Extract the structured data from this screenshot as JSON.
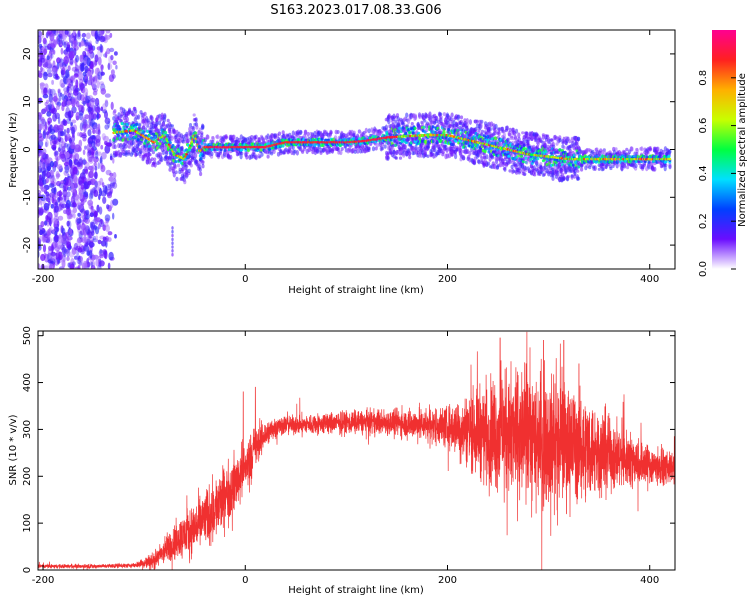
{
  "figure": {
    "title": "S163.2023.017.08.33.G06"
  },
  "chart_data": [
    {
      "type": "heatmap",
      "name": "spectrogram",
      "xlabel": "Height of straight line (km)",
      "ylabel": "Frequency (Hz)",
      "xlim": [
        -205,
        425
      ],
      "ylim": [
        -25,
        25
      ],
      "xticks": [
        -200,
        0,
        200,
        400
      ],
      "yticks": [
        -20,
        -10,
        0,
        10,
        20
      ],
      "colorbar": {
        "label": "Normalized spectral amplitude",
        "range": [
          0,
          1
        ],
        "ticks": [
          0.0,
          0.2,
          0.4,
          0.6,
          0.8
        ],
        "colors": [
          "#ffffff",
          "#6a0dff",
          "#0040ff",
          "#00e0ff",
          "#00ff40",
          "#c8ff00",
          "#ffb000",
          "#ff2020",
          "#ff0090"
        ]
      },
      "ridge": {
        "x": [
          -130,
          -110,
          -90,
          -80,
          -70,
          -60,
          -50,
          -45,
          -40,
          -20,
          0,
          20,
          40,
          60,
          80,
          100,
          120,
          140,
          160,
          180,
          200,
          220,
          240,
          260,
          280,
          300,
          320,
          340,
          360,
          380,
          400,
          420
        ],
        "y": [
          3.5,
          4,
          1.5,
          3,
          -1,
          -2,
          3,
          -0.5,
          0.5,
          0.5,
          0.5,
          0.5,
          1.5,
          1.5,
          1.5,
          1.5,
          1.8,
          2.5,
          2.8,
          3,
          3,
          2,
          1,
          0,
          -1,
          -1.5,
          -2,
          -2,
          -2,
          -2,
          -2,
          -2
        ]
      },
      "noise_region_x": [
        -205,
        -125
      ],
      "spike": {
        "x": -72,
        "y": [
          -22,
          -16
        ]
      }
    },
    {
      "type": "line",
      "name": "snr",
      "xlabel": "Height of straight line (km)",
      "ylabel": "SNR (10 * v/v)",
      "xlim": [
        -205,
        425
      ],
      "ylim": [
        0,
        510
      ],
      "xticks": [
        -200,
        0,
        200,
        400
      ],
      "yticks": [
        0,
        100,
        200,
        300,
        400,
        500
      ],
      "color": "#f03030",
      "envelope": {
        "x": [
          -205,
          -150,
          -110,
          -90,
          -70,
          -50,
          -30,
          -15,
          0,
          10,
          20,
          30,
          40,
          60,
          100,
          150,
          180,
          200,
          220,
          240,
          260,
          280,
          300,
          320,
          340,
          360,
          380,
          400,
          425
        ],
        "y": [
          8,
          8,
          10,
          20,
          60,
          90,
          130,
          170,
          220,
          260,
          290,
          305,
          310,
          310,
          315,
          315,
          310,
          305,
          300,
          295,
          290,
          285,
          280,
          270,
          260,
          250,
          235,
          225,
          215
        ]
      },
      "spread": {
        "x": [
          -205,
          -110,
          -90,
          -60,
          -30,
          0,
          20,
          40,
          150,
          200,
          220,
          250,
          280,
          310,
          340,
          380,
          425
        ],
        "y": [
          4,
          5,
          20,
          50,
          70,
          60,
          30,
          20,
          30,
          45,
          80,
          130,
          150,
          140,
          110,
          60,
          30
        ]
      },
      "peaks": [
        {
          "x": 252,
          "y": 495
        },
        {
          "x": 295,
          "y": 490
        },
        {
          "x": 315,
          "y": 490
        },
        {
          "x": 330,
          "y": 440
        },
        {
          "x": -2,
          "y": 380
        },
        {
          "x": 10,
          "y": 390
        }
      ]
    }
  ]
}
